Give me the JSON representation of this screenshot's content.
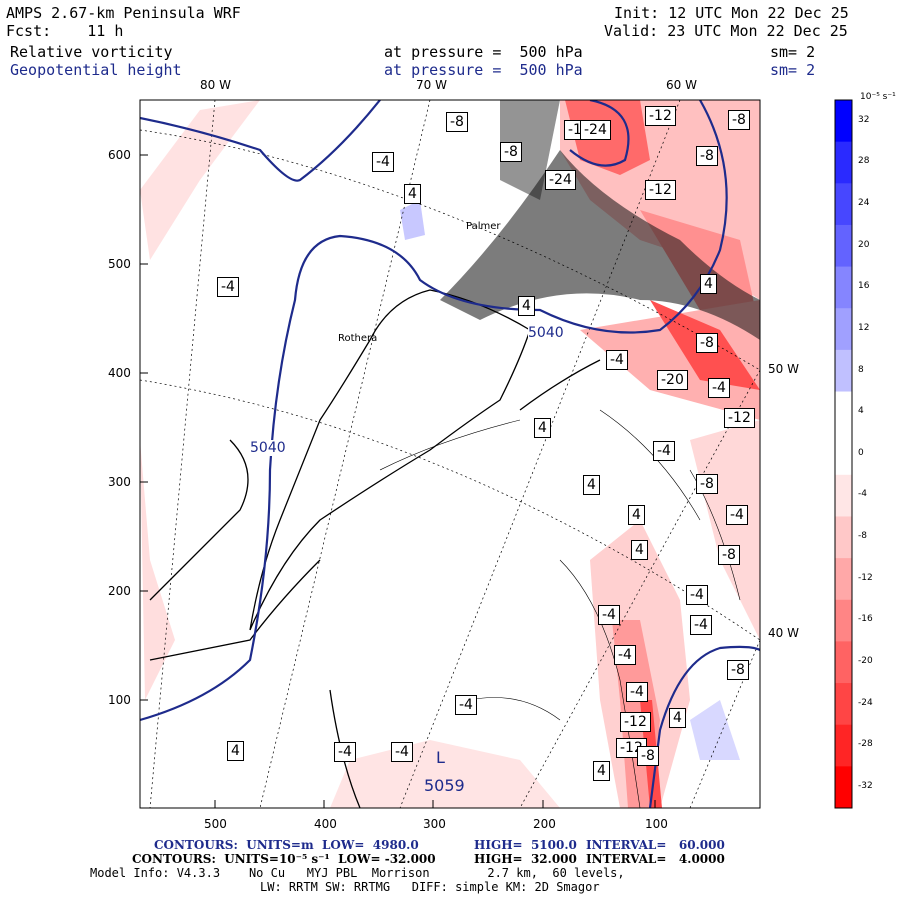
{
  "header": {
    "title": "AMPS 2.67-km Peninsula WRF",
    "forecast": "Fcst:    11 h",
    "init": "Init: 12 UTC Mon 22 Dec 25",
    "valid": "Valid: 23 UTC Mon 22 Dec 25",
    "field1": "Relative vorticity",
    "field1_level": "at pressure =  500 hPa",
    "field1_sm": "sm= 2",
    "field2": "Geopotential height",
    "field2_level": "at pressure =  500 hPa",
    "field2_sm": "sm= 2"
  },
  "map": {
    "lon_top": [
      "80 W",
      "70 W",
      "60 W"
    ],
    "lon_right": [
      "50 W",
      "40 W"
    ],
    "y_ticks": [
      "100",
      "200",
      "300",
      "400",
      "500",
      "600"
    ],
    "x_ticks": [
      "500",
      "400",
      "300",
      "200",
      "100"
    ],
    "place_labels": [
      "Rothera",
      "Palmer"
    ],
    "height_contour_labels": [
      "5040",
      "5040"
    ],
    "low_center": {
      "symbol": "L",
      "value": "5059"
    },
    "vorticity_labels": [
      "-8",
      "-12",
      "-8",
      "-12",
      "-12",
      "-24",
      "-8",
      "-4",
      "4",
      "4",
      "-4",
      "4",
      "-8",
      "-4",
      "-8",
      "-4",
      "-20",
      "-4",
      "-12",
      "-12",
      "-4",
      "4",
      "4",
      "-8",
      "4",
      "4",
      "-8",
      "-4",
      "-4",
      "-4",
      "-4",
      "-4",
      "-4",
      "-12",
      "4",
      "-8",
      "-4",
      "-4",
      "4",
      "4",
      "-8",
      "-24"
    ]
  },
  "colorbar": {
    "unit": "10⁻⁵ s⁻¹",
    "ticks": [
      "32",
      "28",
      "24",
      "20",
      "16",
      "12",
      "8",
      "4",
      "0",
      "-4",
      "-8",
      "-12",
      "-16",
      "-20",
      "-24",
      "-28",
      "-32"
    ],
    "colors": [
      "#0000ff",
      "#2a2aff",
      "#4747ff",
      "#6363ff",
      "#8585ff",
      "#a0a0ff",
      "#c0c0ff",
      "#ffffff",
      "#ffffff",
      "#ffe6e6",
      "#ffc8c8",
      "#ffa8a8",
      "#ff8585",
      "#ff6363",
      "#ff4545",
      "#ff2525",
      "#ff0000"
    ]
  },
  "footer": {
    "line1_label": "CONTOURS:  UNITS=m  LOW=  4980.0",
    "line1_high": "HIGH=  5100.0",
    "line1_interval": "INTERVAL=   60.000",
    "line2_label": "CONTOURS:  UNITS=10⁻⁵ s⁻¹  LOW= -32.000",
    "line2_high": "HIGH=  32.000",
    "line2_interval": "INTERVAL=   4.0000",
    "model1": "Model Info: V4.3.3    No Cu   MYJ PBL  Morrison        2.7 km,  60 levels,",
    "model2": "LW: RRTM SW: RRTMG   DIFF: simple KM: 2D Smagor"
  }
}
